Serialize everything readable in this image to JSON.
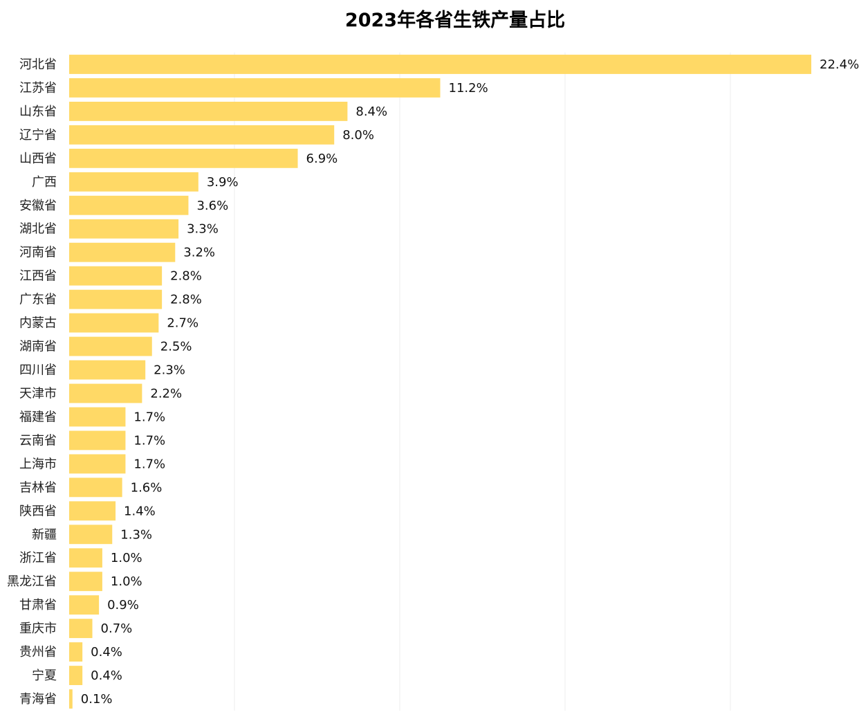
{
  "chart_data": {
    "type": "bar",
    "orientation": "horizontal",
    "title": "2023年各省生铁产量占比",
    "xlabel": "",
    "ylabel": "",
    "xlim": [
      0,
      22.4
    ],
    "grid": true,
    "legend": "none",
    "bar_color": "#FFD966",
    "value_suffix": "%",
    "categories": [
      "河北省",
      "江苏省",
      "山东省",
      "辽宁省",
      "山西省",
      "广西",
      "安徽省",
      "湖北省",
      "河南省",
      "江西省",
      "广东省",
      "内蒙古",
      "湖南省",
      "四川省",
      "天津市",
      "福建省",
      "云南省",
      "上海市",
      "吉林省",
      "陕西省",
      "新疆",
      "浙江省",
      "黑龙江省",
      "甘肃省",
      "重庆市",
      "贵州省",
      "宁夏",
      "青海省"
    ],
    "values": [
      22.4,
      11.2,
      8.4,
      8.0,
      6.9,
      3.9,
      3.6,
      3.3,
      3.2,
      2.8,
      2.8,
      2.7,
      2.5,
      2.3,
      2.2,
      1.7,
      1.7,
      1.7,
      1.6,
      1.4,
      1.3,
      1.0,
      1.0,
      0.9,
      0.7,
      0.4,
      0.4,
      0.1
    ]
  }
}
